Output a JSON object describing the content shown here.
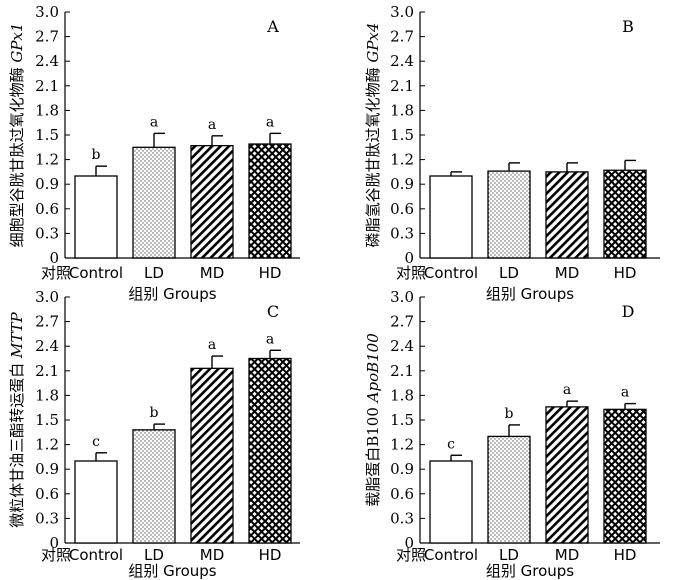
{
  "chart_data": [
    {
      "type": "bar",
      "panel_label": "A",
      "categories": [
        "对照 Control",
        "LD",
        "MD",
        "HD"
      ],
      "values": [
        1.0,
        1.35,
        1.37,
        1.39
      ],
      "errors": [
        0.12,
        0.17,
        0.12,
        0.13
      ],
      "significance": [
        "b",
        "a",
        "a",
        "a"
      ],
      "ylabel": "细胞型谷胱甘肽过氧化物酶",
      "ylabel_gene": "GPx1",
      "xlabel": "组别 Groups",
      "ylim": [
        0,
        3.0
      ],
      "yticks": [
        "0",
        "0.3",
        "0.6",
        "0.9",
        "1.2",
        "1.5",
        "1.8",
        "2.1",
        "2.4",
        "2.7",
        "3.0"
      ]
    },
    {
      "type": "bar",
      "panel_label": "B",
      "categories": [
        "对照 Control",
        "LD",
        "MD",
        "HD"
      ],
      "values": [
        1.0,
        1.06,
        1.05,
        1.07
      ],
      "errors": [
        0.05,
        0.1,
        0.11,
        0.12
      ],
      "significance": [
        "",
        "",
        "",
        ""
      ],
      "ylabel": "磷脂氢谷胱甘肽过氧化物酶",
      "ylabel_gene": "GPx4",
      "xlabel": "组别 Groups",
      "ylim": [
        0,
        3.0
      ],
      "yticks": [
        "0",
        "0.3",
        "0.6",
        "0.9",
        "1.2",
        "1.5",
        "1.8",
        "2.1",
        "2.4",
        "2.7",
        "3.0"
      ]
    },
    {
      "type": "bar",
      "panel_label": "C",
      "categories": [
        "对照 Control",
        "LD",
        "MD",
        "HD"
      ],
      "values": [
        1.0,
        1.38,
        2.13,
        2.25
      ],
      "errors": [
        0.1,
        0.07,
        0.15,
        0.1
      ],
      "significance": [
        "c",
        "b",
        "a",
        "a"
      ],
      "ylabel": "微粒体甘油三酯转运蛋白",
      "ylabel_gene": "MTTP",
      "xlabel": "组别 Groups",
      "ylim": [
        0,
        3.0
      ],
      "yticks": [
        "0",
        "0.3",
        "0.6",
        "0.9",
        "1.2",
        "1.5",
        "1.8",
        "2.1",
        "2.4",
        "2.7",
        "3.0"
      ]
    },
    {
      "type": "bar",
      "panel_label": "D",
      "categories": [
        "对照 Control",
        "LD",
        "MD",
        "HD"
      ],
      "values": [
        1.0,
        1.3,
        1.66,
        1.63
      ],
      "errors": [
        0.07,
        0.14,
        0.07,
        0.07
      ],
      "significance": [
        "c",
        "b",
        "a",
        "a"
      ],
      "ylabel": "载脂蛋白B100",
      "ylabel_gene": "ApoB100",
      "xlabel": "组别 Groups",
      "ylim": [
        0,
        3.0
      ],
      "yticks": [
        "0",
        "0.3",
        "0.6",
        "0.9",
        "1.2",
        "1.5",
        "1.8",
        "2.1",
        "2.4",
        "2.7",
        "3.0"
      ]
    }
  ]
}
